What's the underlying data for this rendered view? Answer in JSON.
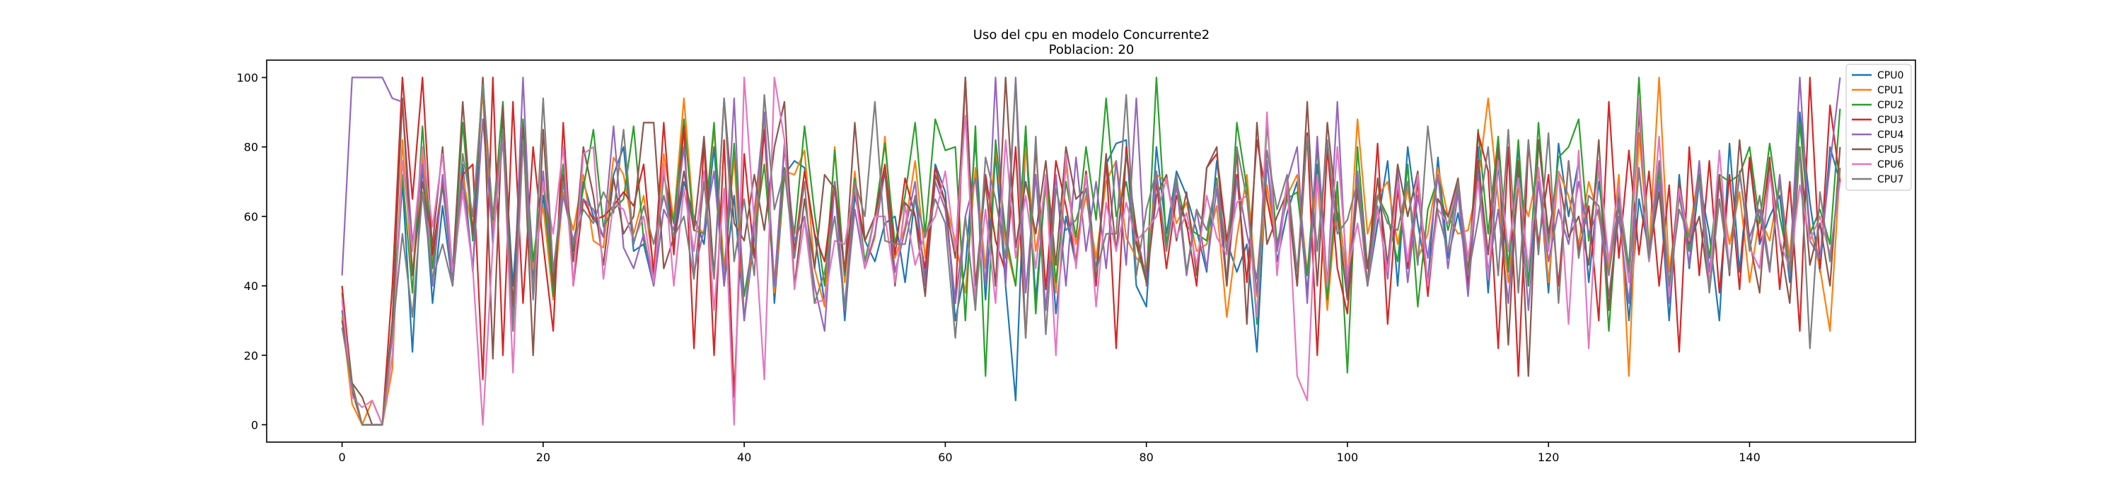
{
  "chart_data": {
    "type": "line",
    "title": "Uso del cpu en modelo Concurrente2",
    "subtitle": "Poblacion: 20",
    "xlabel": "",
    "ylabel": "",
    "xlim": [
      -7.5,
      156.5
    ],
    "ylim": [
      -5,
      105
    ],
    "xticks": [
      0,
      20,
      40,
      60,
      80,
      100,
      120,
      140
    ],
    "yticks": [
      0,
      20,
      40,
      60,
      80,
      100
    ],
    "grid": false,
    "legend_position": "top-right",
    "series": [
      {
        "name": "CPU0",
        "color": "#1f77b4",
        "values": [
          33,
          10,
          0,
          0,
          0,
          26,
          70,
          21,
          75,
          35,
          63,
          40,
          75,
          44,
          100,
          52,
          87,
          40,
          82,
          42,
          66,
          40,
          70,
          50,
          70,
          60,
          54,
          72,
          80,
          50,
          52,
          40,
          73,
          52,
          70,
          60,
          52,
          80,
          40,
          66,
          30,
          54,
          90,
          35,
          72,
          76,
          74,
          55,
          35,
          70,
          30,
          66,
          53,
          47,
          58,
          60,
          41,
          66,
          42,
          75,
          67,
          30,
          45,
          82,
          36,
          78,
          40,
          7,
          82,
          36,
          70,
          32,
          60,
          46,
          73,
          44,
          75,
          81,
          82,
          40,
          34,
          80,
          55,
          73,
          66,
          56,
          44,
          76,
          53,
          44,
          52,
          21,
          76,
          47,
          61,
          70,
          38,
          75,
          40,
          61,
          36,
          72,
          40,
          58,
          76,
          40,
          80,
          58,
          41,
          77,
          48,
          61,
          44,
          80,
          38,
          75,
          44,
          80,
          40,
          74,
          38,
          81,
          60,
          76,
          41,
          70,
          47,
          63,
          30,
          65,
          50,
          70,
          30,
          72,
          45,
          70,
          55,
          30,
          81,
          44,
          76,
          52,
          60,
          66,
          41,
          90,
          64,
          44,
          80,
          70
        ]
      },
      {
        "name": "CPU1",
        "color": "#ff7f0e",
        "values": [
          31,
          6,
          0,
          7,
          0,
          16,
          82,
          43,
          78,
          48,
          70,
          41,
          72,
          55,
          96,
          57,
          83,
          29,
          86,
          45,
          63,
          36,
          67,
          56,
          72,
          53,
          51,
          77,
          72,
          55,
          66,
          45,
          78,
          59,
          94,
          58,
          55,
          85,
          45,
          77,
          30,
          57,
          86,
          38,
          73,
          72,
          79,
          45,
          34,
          80,
          41,
          73,
          45,
          54,
          83,
          48,
          57,
          76,
          48,
          72,
          64,
          53,
          38,
          74,
          45,
          80,
          52,
          40,
          80,
          50,
          68,
          38,
          75,
          52,
          66,
          48,
          70,
          76,
          54,
          48,
          45,
          72,
          70,
          58,
          64,
          50,
          52,
          63,
          31,
          54,
          72,
          37,
          69,
          50,
          66,
          72,
          44,
          71,
          33,
          66,
          40,
          88,
          55,
          66,
          70,
          52,
          68,
          48,
          55,
          74,
          60,
          55,
          56,
          70,
          94,
          65,
          41,
          68,
          60,
          74,
          41,
          73,
          66,
          52,
          70,
          60,
          45,
          72,
          14,
          84,
          50,
          100,
          44,
          66,
          55,
          74,
          40,
          70,
          52,
          67,
          41,
          60,
          53,
          70,
          48,
          87,
          57,
          45,
          27,
          74
        ]
      },
      {
        "name": "CPU2",
        "color": "#2ca02c",
        "values": [
          38,
          12,
          0,
          0,
          0,
          30,
          72,
          38,
          86,
          45,
          69,
          43,
          87,
          53,
          99,
          59,
          93,
          30,
          88,
          47,
          71,
          37,
          75,
          51,
          68,
          85,
          57,
          62,
          65,
          86,
          53,
          42,
          72,
          58,
          88,
          56,
          55,
          87,
          40,
          81,
          37,
          55,
          75,
          41,
          74,
          55,
          86,
          61,
          40,
          79,
          43,
          71,
          47,
          60,
          81,
          52,
          66,
          87,
          55,
          88,
          79,
          80,
          30,
          86,
          14,
          82,
          55,
          40,
          86,
          32,
          72,
          41,
          70,
          54,
          80,
          59,
          94,
          60,
          70,
          52,
          41,
          100,
          52,
          70,
          57,
          55,
          53,
          71,
          41,
          87,
          68,
          29,
          87,
          52,
          65,
          67,
          43,
          80,
          36,
          70,
          15,
          80,
          45,
          66,
          60,
          47,
          75,
          34,
          62,
          71,
          56,
          68,
          43,
          85,
          55,
          83,
          45,
          82,
          40,
          87,
          52,
          77,
          80,
          88,
          53,
          76,
          27,
          67,
          45,
          100,
          50,
          73,
          38,
          66,
          50,
          72,
          48,
          72,
          70,
          72,
          80,
          58,
          81,
          60,
          45,
          87,
          55,
          62,
          52,
          91
        ]
      },
      {
        "name": "CPU3",
        "color": "#d62728",
        "values": [
          40,
          10,
          0,
          0,
          0,
          40,
          100,
          65,
          100,
          49,
          70,
          45,
          72,
          75,
          13,
          100,
          20,
          93,
          35,
          80,
          52,
          27,
          87,
          40,
          65,
          59,
          60,
          63,
          67,
          63,
          75,
          43,
          87,
          49,
          86,
          22,
          82,
          20,
          82,
          8,
          78,
          48,
          85,
          40,
          80,
          50,
          73,
          55,
          47,
          70,
          44,
          68,
          53,
          60,
          75,
          49,
          71,
          60,
          45,
          74,
          64,
          35,
          100,
          35,
          72,
          53,
          44,
          80,
          25,
          80,
          39,
          76,
          63,
          47,
          73,
          40,
          77,
          22,
          80,
          53,
          42,
          70,
          45,
          66,
          58,
          40,
          74,
          78,
          53,
          72,
          41,
          82,
          65,
          50,
          68,
          40,
          84,
          20,
          80,
          45,
          32,
          70,
          40,
          81,
          29,
          68,
          45,
          70,
          37,
          65,
          60,
          70,
          40,
          84,
          73,
          22,
          80,
          14,
          81,
          52,
          72,
          40,
          76,
          50,
          63,
          30,
          93,
          48,
          79,
          49,
          73,
          40,
          69,
          21,
          80,
          43,
          76,
          38,
          72,
          39,
          77,
          53,
          77,
          39,
          70,
          27,
          100,
          45,
          92,
          70
        ]
      },
      {
        "name": "CPU4",
        "color": "#9467bd",
        "values": [
          43,
          100,
          100,
          100,
          100,
          94,
          93,
          52,
          75,
          40,
          72,
          41,
          70,
          45,
          88,
          54,
          82,
          30,
          100,
          36,
          73,
          43,
          66,
          53,
          65,
          62,
          54,
          86,
          51,
          45,
          55,
          40,
          62,
          56,
          80,
          44,
          56,
          73,
          40,
          94,
          30,
          61,
          90,
          40,
          81,
          53,
          60,
          40,
          27,
          70,
          33,
          62,
          45,
          55,
          73,
          44,
          56,
          70,
          40,
          70,
          62,
          35,
          60,
          71,
          40,
          100,
          40,
          100,
          38,
          72,
          33,
          72,
          40,
          77,
          50,
          70,
          45,
          76,
          46,
          94,
          40,
          72,
          50,
          69,
          43,
          62,
          45,
          68,
          40,
          71,
          55,
          42,
          76,
          50,
          70,
          80,
          35,
          83,
          40,
          93,
          38,
          73,
          45,
          63,
          42,
          73,
          41,
          66,
          48,
          72,
          45,
          67,
          37,
          73,
          44,
          62,
          35,
          72,
          33,
          70,
          47,
          62,
          52,
          70,
          55,
          62,
          37,
          60,
          35,
          74,
          47,
          70,
          35,
          68,
          46,
          76,
          44,
          70,
          45,
          72,
          54,
          62,
          44,
          72,
          43,
          100,
          53,
          48,
          75,
          100
        ]
      },
      {
        "name": "CPU5",
        "color": "#8c564b",
        "values": [
          30,
          12,
          8,
          0,
          0,
          30,
          94,
          43,
          70,
          52,
          80,
          44,
          93,
          55,
          100,
          19,
          92,
          34,
          86,
          20,
          85,
          40,
          72,
          47,
          80,
          66,
          46,
          71,
          55,
          60,
          87,
          87,
          45,
          54,
          73,
          56,
          83,
          43,
          94,
          58,
          53,
          72,
          56,
          80,
          93,
          40,
          65,
          45,
          72,
          68,
          44,
          87,
          53,
          60,
          73,
          40,
          64,
          60,
          37,
          72,
          64,
          48,
          100,
          40,
          70,
          40,
          100,
          51,
          70,
          55,
          76,
          46,
          80,
          65,
          68,
          42,
          78,
          50,
          78,
          56,
          41,
          66,
          72,
          53,
          67,
          43,
          74,
          80,
          40,
          79,
          29,
          87,
          52,
          60,
          67,
          40,
          93,
          40,
          87,
          60,
          36,
          67,
          45,
          71,
          46,
          75,
          60,
          73,
          40,
          65,
          60,
          71,
          44,
          76,
          49,
          80,
          23,
          76,
          14,
          82,
          55,
          72,
          54,
          60,
          46,
          82,
          33,
          65,
          41,
          90,
          49,
          67,
          40,
          70,
          52,
          60,
          39,
          72,
          43,
          82,
          53,
          38,
          76,
          53,
          35,
          80,
          46,
          58,
          40,
          80
        ]
      },
      {
        "name": "CPU6",
        "color": "#e377c2",
        "values": [
          36,
          8,
          5,
          7,
          0,
          20,
          76,
          50,
          80,
          57,
          78,
          44,
          67,
          45,
          0,
          52,
          85,
          15,
          82,
          38,
          70,
          55,
          80,
          40,
          78,
          80,
          42,
          64,
          62,
          53,
          60,
          41,
          75,
          40,
          68,
          50,
          73,
          33,
          68,
          0,
          100,
          58,
          13,
          100,
          82,
          39,
          59,
          35,
          36,
          53,
          52,
          69,
          45,
          60,
          60,
          41,
          63,
          46,
          55,
          60,
          73,
          50,
          89,
          36,
          62,
          35,
          82,
          48,
          66,
          45,
          72,
          20,
          78,
          45,
          72,
          34,
          64,
          50,
          64,
          53,
          56,
          60,
          71,
          54,
          61,
          46,
          66,
          54,
          49,
          64,
          66,
          31,
          90,
          43,
          71,
          14,
          7,
          72,
          40,
          80,
          44,
          58,
          40,
          62,
          44,
          70,
          47,
          72,
          40,
          62,
          58,
          69,
          48,
          70,
          42,
          76,
          50,
          71,
          45,
          74,
          50,
          73,
          29,
          79,
          22,
          76,
          47,
          69,
          41,
          94,
          47,
          83,
          37,
          68,
          53,
          70,
          40,
          79,
          44,
          73,
          51,
          45,
          72,
          53,
          45,
          69,
          53,
          60,
          49,
          70
        ]
      },
      {
        "name": "CPU7",
        "color": "#7f7f7f",
        "values": [
          28,
          11,
          0,
          0,
          0,
          26,
          55,
          31,
          67,
          42,
          52,
          40,
          78,
          60,
          98,
          60,
          85,
          27,
          82,
          37,
          94,
          44,
          70,
          52,
          62,
          58,
          67,
          61,
          85,
          52,
          63,
          52,
          66,
          54,
          60,
          42,
          70,
          42,
          94,
          47,
          65,
          43,
          95,
          62,
          73,
          48,
          70,
          35,
          44,
          60,
          34,
          70,
          60,
          93,
          53,
          52,
          52,
          66,
          54,
          65,
          58,
          25,
          60,
          33,
          77,
          65,
          48,
          99,
          25,
          83,
          26,
          68,
          56,
          59,
          68,
          44,
          55,
          55,
          95,
          43,
          62,
          73,
          50,
          72,
          44,
          62,
          56,
          70,
          50,
          80,
          65,
          38,
          79,
          62,
          72,
          44,
          83,
          50,
          82,
          55,
          59,
          70,
          40,
          66,
          58,
          56,
          70,
          46,
          86,
          61,
          50,
          70,
          43,
          59,
          80,
          43,
          85,
          38,
          82,
          49,
          84,
          35,
          76,
          48,
          66,
          63,
          43,
          64,
          44,
          73,
          48,
          76,
          40,
          62,
          54,
          70,
          38,
          65,
          44,
          73,
          50,
          66,
          45,
          70,
          44,
          80,
          22,
          67,
          47,
          74
        ]
      }
    ]
  }
}
